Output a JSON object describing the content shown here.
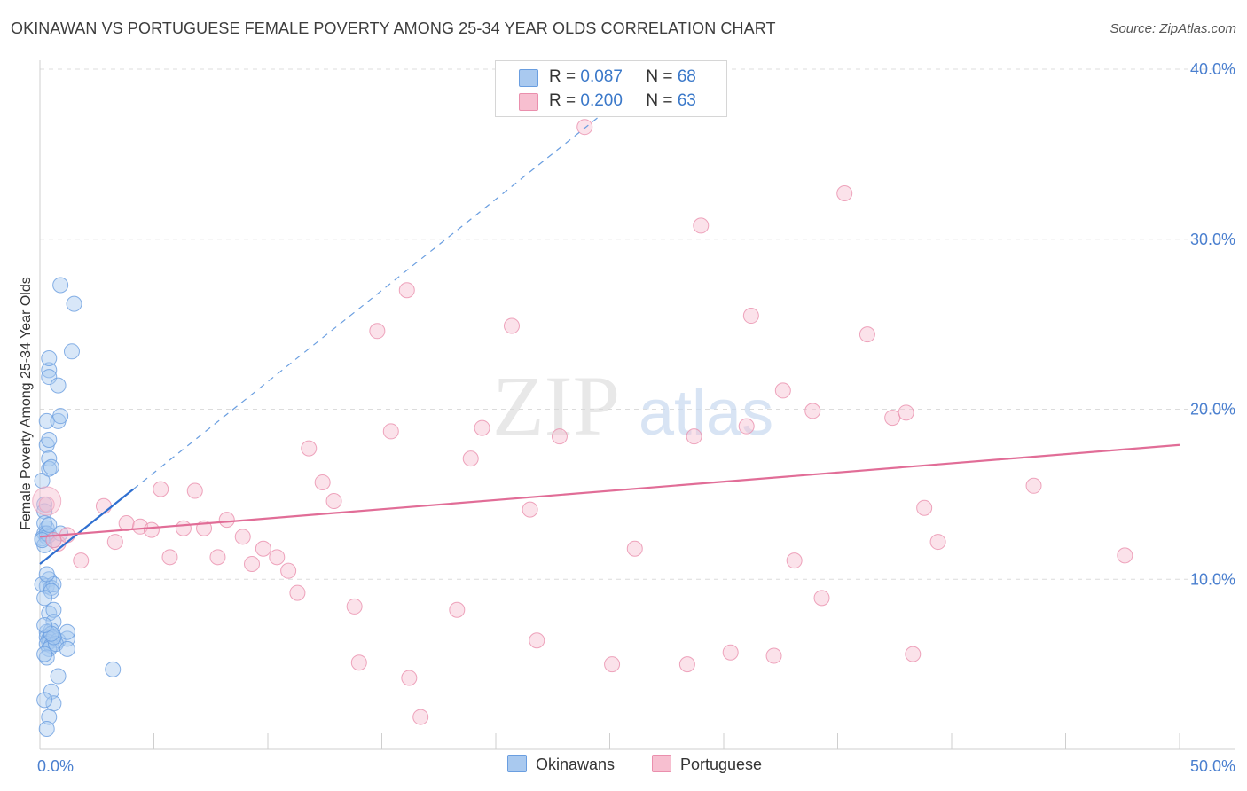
{
  "title": "OKINAWAN VS PORTUGUESE FEMALE POVERTY AMONG 25-34 YEAR OLDS CORRELATION CHART",
  "source": "Source: ZipAtlas.com",
  "watermark": {
    "zip": "ZIP",
    "atlas": "atlas"
  },
  "legend": {
    "rows": [
      {
        "r_label": "R =",
        "r_value": "0.087",
        "n_label": "N =",
        "n_value": "68",
        "color": "#a9c9ef",
        "border": "#6a9ee0"
      },
      {
        "r_label": "R =",
        "r_value": "0.200",
        "n_label": "N =",
        "n_value": "63",
        "color": "#f7bfd0",
        "border": "#ea8fad"
      }
    ]
  },
  "bottom_legend": [
    {
      "label": "Okinawans",
      "color": "#a9c9ef",
      "border": "#6a9ee0"
    },
    {
      "label": "Portuguese",
      "color": "#f7bfd0",
      "border": "#ea8fad"
    }
  ],
  "chart_data": {
    "type": "scatter",
    "title": "OKINAWAN VS PORTUGUESE FEMALE POVERTY AMONG 25-34 YEAR OLDS CORRELATION CHART",
    "xlabel": "",
    "ylabel": "Female Poverty Among 25-34 Year Olds",
    "xlim": [
      0,
      50
    ],
    "ylim": [
      0,
      40
    ],
    "x_tick_labels": [
      {
        "value": 0,
        "label": "0.0%"
      },
      {
        "value": 50,
        "label": "50.0%"
      }
    ],
    "y_tick_labels": [
      {
        "value": 10,
        "label": "10.0%"
      },
      {
        "value": 20,
        "label": "20.0%"
      },
      {
        "value": 30,
        "label": "30.0%"
      },
      {
        "value": 40,
        "label": "40.0%"
      }
    ],
    "grid": true,
    "series": [
      {
        "name": "Okinawans",
        "color": "#6a9ee0",
        "fill": "#a9c9ef",
        "trend": {
          "x": [
            0,
            4.1
          ],
          "y": [
            10.9,
            15.3
          ],
          "extended_to": {
            "x": 24.8,
            "y": 37.5
          }
        },
        "points": [
          [
            0.2,
            14.4
          ],
          [
            0.3,
            13.0
          ],
          [
            0.2,
            12.7
          ],
          [
            0.1,
            12.4
          ],
          [
            0.3,
            12.5
          ],
          [
            0.2,
            12.0
          ],
          [
            0.4,
            12.6
          ],
          [
            0.1,
            15.8
          ],
          [
            0.3,
            17.9
          ],
          [
            0.4,
            18.2
          ],
          [
            0.4,
            17.1
          ],
          [
            0.4,
            16.5
          ],
          [
            0.5,
            16.6
          ],
          [
            0.3,
            19.3
          ],
          [
            0.8,
            19.3
          ],
          [
            0.9,
            19.6
          ],
          [
            0.4,
            22.3
          ],
          [
            0.4,
            23.0
          ],
          [
            0.4,
            21.9
          ],
          [
            0.8,
            21.4
          ],
          [
            1.4,
            23.4
          ],
          [
            0.9,
            27.3
          ],
          [
            1.5,
            26.2
          ],
          [
            0.2,
            14.0
          ],
          [
            0.2,
            13.3
          ],
          [
            0.3,
            12.7
          ],
          [
            0.1,
            12.3
          ],
          [
            0.4,
            10.0
          ],
          [
            0.3,
            9.6
          ],
          [
            0.5,
            9.5
          ],
          [
            0.1,
            9.7
          ],
          [
            0.6,
            9.7
          ],
          [
            0.5,
            9.3
          ],
          [
            0.2,
            8.9
          ],
          [
            0.4,
            8.0
          ],
          [
            0.6,
            8.2
          ],
          [
            0.6,
            7.5
          ],
          [
            0.5,
            7.0
          ],
          [
            0.3,
            6.9
          ],
          [
            0.5,
            6.6
          ],
          [
            0.3,
            6.6
          ],
          [
            0.6,
            6.5
          ],
          [
            0.4,
            6.5
          ],
          [
            0.4,
            6.3
          ],
          [
            0.8,
            6.4
          ],
          [
            1.2,
            6.5
          ],
          [
            0.3,
            6.2
          ],
          [
            0.5,
            6.1
          ],
          [
            0.4,
            5.9
          ],
          [
            0.7,
            6.2
          ],
          [
            1.2,
            5.9
          ],
          [
            1.2,
            6.9
          ],
          [
            0.3,
            5.4
          ],
          [
            0.2,
            5.6
          ],
          [
            0.8,
            4.3
          ],
          [
            3.2,
            4.7
          ],
          [
            0.5,
            3.4
          ],
          [
            0.6,
            2.7
          ],
          [
            0.2,
            2.9
          ],
          [
            0.4,
            1.9
          ],
          [
            0.3,
            1.2
          ],
          [
            0.6,
            6.6
          ],
          [
            0.5,
            6.8
          ],
          [
            0.2,
            7.3
          ],
          [
            0.3,
            10.3
          ],
          [
            0.6,
            12.3
          ],
          [
            0.9,
            12.7
          ],
          [
            0.4,
            13.2
          ]
        ]
      },
      {
        "name": "Portuguese",
        "color": "#ea8fad",
        "fill": "#f7bfd0",
        "trend": {
          "x": [
            0,
            50
          ],
          "y": [
            12.5,
            17.9
          ]
        },
        "points": [
          [
            0.3,
            14.4
          ],
          [
            0.8,
            12.1
          ],
          [
            1.2,
            12.6
          ],
          [
            1.8,
            11.1
          ],
          [
            2.8,
            14.3
          ],
          [
            3.3,
            12.2
          ],
          [
            3.8,
            13.3
          ],
          [
            4.4,
            13.1
          ],
          [
            4.9,
            12.9
          ],
          [
            5.3,
            15.3
          ],
          [
            5.7,
            11.3
          ],
          [
            6.3,
            13.0
          ],
          [
            6.8,
            15.2
          ],
          [
            7.2,
            13.0
          ],
          [
            7.8,
            11.3
          ],
          [
            8.2,
            13.5
          ],
          [
            8.9,
            12.5
          ],
          [
            9.3,
            10.9
          ],
          [
            9.8,
            11.8
          ],
          [
            10.4,
            11.3
          ],
          [
            10.9,
            10.5
          ],
          [
            11.3,
            9.2
          ],
          [
            11.8,
            17.7
          ],
          [
            12.4,
            15.7
          ],
          [
            12.9,
            14.6
          ],
          [
            13.8,
            8.4
          ],
          [
            14.0,
            5.1
          ],
          [
            14.8,
            24.6
          ],
          [
            15.4,
            18.7
          ],
          [
            16.1,
            27.0
          ],
          [
            16.2,
            4.2
          ],
          [
            16.7,
            1.9
          ],
          [
            18.3,
            8.2
          ],
          [
            18.9,
            17.1
          ],
          [
            19.4,
            18.9
          ],
          [
            20.7,
            24.9
          ],
          [
            21.5,
            14.1
          ],
          [
            21.8,
            6.4
          ],
          [
            22.8,
            18.4
          ],
          [
            23.9,
            36.6
          ],
          [
            25.1,
            5.0
          ],
          [
            26.1,
            11.8
          ],
          [
            28.4,
            5.0
          ],
          [
            28.7,
            18.4
          ],
          [
            29.0,
            30.8
          ],
          [
            30.3,
            5.7
          ],
          [
            31.0,
            19.0
          ],
          [
            31.2,
            25.5
          ],
          [
            32.2,
            5.5
          ],
          [
            32.6,
            21.1
          ],
          [
            33.1,
            11.1
          ],
          [
            33.9,
            19.9
          ],
          [
            34.3,
            8.9
          ],
          [
            35.3,
            32.7
          ],
          [
            36.3,
            24.4
          ],
          [
            37.4,
            19.5
          ],
          [
            38.0,
            19.8
          ],
          [
            38.3,
            5.6
          ],
          [
            38.8,
            14.2
          ],
          [
            39.4,
            12.2
          ],
          [
            43.6,
            15.5
          ],
          [
            47.6,
            11.4
          ],
          [
            0.6,
            12.3
          ]
        ]
      }
    ]
  }
}
